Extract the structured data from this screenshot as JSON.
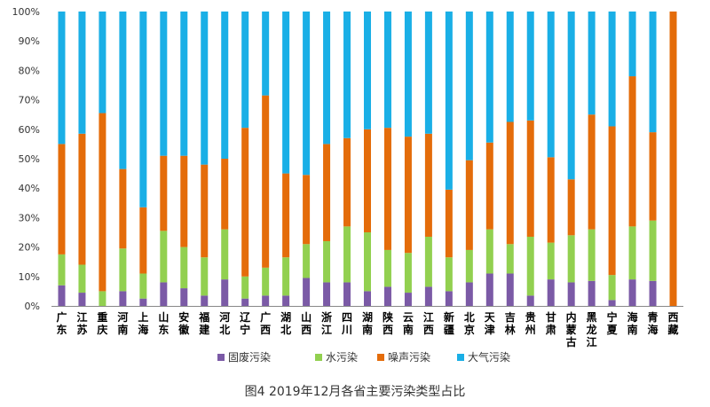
{
  "chart_data": {
    "type": "bar",
    "stacked": true,
    "percent": true,
    "caption": "图4 2019年12月各省主要污染类型占比",
    "categories": [
      "广东",
      "江苏",
      "重庆",
      "河南",
      "上海",
      "山东",
      "安徽",
      "福建",
      "河北",
      "辽宁",
      "广西",
      "湖北",
      "山西",
      "浙江",
      "四川",
      "湖南",
      "陕西",
      "云南",
      "江西",
      "新疆",
      "北京",
      "天津",
      "吉林",
      "贵州",
      "甘肃",
      "内蒙古",
      "黑龙江",
      "宁夏",
      "海南",
      "青海",
      "西藏"
    ],
    "series": [
      {
        "name": "固废污染",
        "color": "#7b5aa6",
        "values": [
          7,
          4.5,
          0,
          5,
          2.5,
          8,
          6,
          3.5,
          9,
          2.5,
          3.5,
          3.5,
          9.5,
          8,
          8,
          5,
          6.5,
          4.5,
          6.5,
          5,
          8,
          11,
          11,
          3.5,
          9,
          8,
          8.5,
          2,
          9,
          8.5,
          0
        ]
      },
      {
        "name": "水污染",
        "color": "#92d050",
        "values": [
          10.5,
          9.5,
          5,
          14.5,
          8.5,
          17.5,
          14,
          13,
          17,
          7.5,
          9.5,
          13,
          11.5,
          14,
          19,
          20,
          12.5,
          13.5,
          17,
          11.5,
          11,
          15,
          10,
          20,
          12.5,
          16,
          17.5,
          8.5,
          18,
          20.5,
          0
        ]
      },
      {
        "name": "噪声污染",
        "color": "#e46c0a",
        "values": [
          37.5,
          44.5,
          60.5,
          27,
          22.5,
          25.5,
          31,
          31.5,
          24,
          50.5,
          58.5,
          28.5,
          23.5,
          33,
          30,
          35,
          41.5,
          39.5,
          35,
          23,
          30.5,
          29.5,
          41.5,
          39.5,
          29,
          19,
          39,
          50.5,
          51,
          30,
          100
        ]
      },
      {
        "name": "大气污染",
        "color": "#1aafe6",
        "values": [
          45,
          41.5,
          34.5,
          53.5,
          66.5,
          49,
          49,
          52,
          50,
          39.5,
          28.5,
          55,
          55.5,
          45,
          43,
          40,
          39.5,
          42.5,
          41.5,
          60.5,
          50.5,
          44.5,
          37.5,
          37,
          49.5,
          57,
          35,
          39,
          22,
          41,
          0
        ]
      }
    ],
    "yticks": [
      "0%",
      "10%",
      "20%",
      "30%",
      "40%",
      "50%",
      "60%",
      "70%",
      "80%",
      "90%",
      "100%"
    ],
    "ylim": [
      0,
      100
    ],
    "legend_position": "bottom",
    "grid": false
  }
}
